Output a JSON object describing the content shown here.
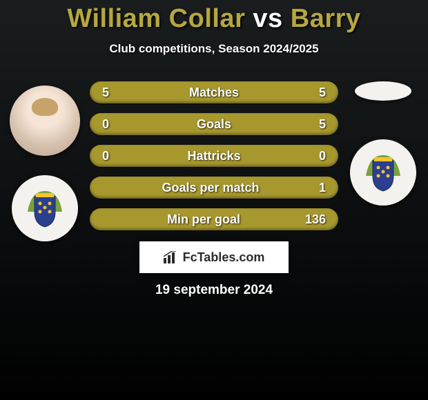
{
  "title": {
    "player1": "William Collar",
    "vs": "vs",
    "player2": "Barry",
    "player1_color": "#b6a73f",
    "vs_color": "#ffffff",
    "player2_color": "#b6a73f"
  },
  "subtitle": "Club competitions, Season 2024/2025",
  "stats": {
    "row_bg_color": "#a7982e",
    "rows": [
      {
        "left": "5",
        "label": "Matches",
        "right": "5"
      },
      {
        "left": "0",
        "label": "Goals",
        "right": "5"
      },
      {
        "left": "0",
        "label": "Hattricks",
        "right": "0"
      },
      {
        "left": "",
        "label": "Goals per match",
        "right": "1"
      },
      {
        "left": "",
        "label": "Min per goal",
        "right": "136"
      }
    ]
  },
  "attribution": {
    "text": "FcTables.com",
    "icon_name": "bar-chart-icon"
  },
  "date": "19 september 2024",
  "crest_colors": {
    "shield_top": "#2b3f8f",
    "shield_accent": "#f2c531",
    "leaf": "#7aa23a"
  }
}
